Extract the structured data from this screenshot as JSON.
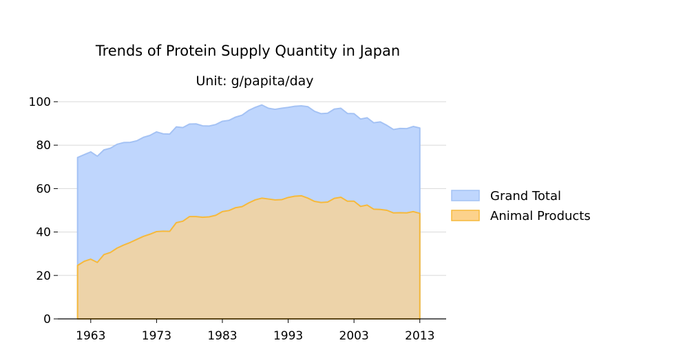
{
  "chart_data": {
    "type": "area",
    "title": "Trends of Protein Supply Quantity in Japan",
    "subtitle": "Unit: g/papita/day",
    "xlabel": "",
    "ylabel": "",
    "xlim": [
      1958,
      2017
    ],
    "ylim": [
      0,
      100
    ],
    "x_ticks": [
      1963,
      1973,
      1983,
      1993,
      2003,
      2013
    ],
    "y_ticks": [
      0,
      20,
      40,
      60,
      80,
      100
    ],
    "grid": "horizontal",
    "legend_position": "right",
    "x": [
      1961,
      1962,
      1963,
      1964,
      1965,
      1966,
      1967,
      1968,
      1969,
      1970,
      1971,
      1972,
      1973,
      1974,
      1975,
      1976,
      1977,
      1978,
      1979,
      1980,
      1981,
      1982,
      1983,
      1984,
      1985,
      1986,
      1987,
      1988,
      1989,
      1990,
      1991,
      1992,
      1993,
      1994,
      1995,
      1996,
      1997,
      1998,
      1999,
      2000,
      2001,
      2002,
      2003,
      2004,
      2005,
      2006,
      2007,
      2008,
      2009,
      2010,
      2011,
      2012,
      2013
    ],
    "series": [
      {
        "name": "Grand Total",
        "color": "#a4c2f4",
        "fill": "#bfd6fd",
        "values": [
          74.3,
          75.6,
          76.9,
          74.9,
          77.8,
          78.6,
          80.4,
          81.2,
          81.3,
          82.0,
          83.6,
          84.5,
          86.1,
          85.2,
          85.1,
          88.4,
          88.1,
          89.7,
          89.8,
          88.9,
          88.8,
          89.5,
          91.0,
          91.4,
          92.9,
          93.8,
          96.0,
          97.4,
          98.5,
          97.0,
          96.5,
          97.0,
          97.4,
          97.9,
          98.1,
          97.7,
          95.6,
          94.5,
          94.7,
          96.6,
          97.0,
          94.6,
          94.5,
          92.0,
          92.6,
          90.3,
          90.7,
          89.1,
          87.2,
          87.7,
          87.6,
          88.6,
          87.9
        ]
      },
      {
        "name": "Animal Products",
        "color": "#f6b93b",
        "fill": "#fcd28c",
        "values": [
          24.6,
          26.5,
          27.5,
          26.0,
          29.6,
          30.6,
          32.6,
          34.0,
          35.2,
          36.6,
          38.0,
          39.0,
          40.2,
          40.4,
          40.3,
          44.3,
          45.0,
          47.1,
          47.1,
          46.8,
          47.0,
          47.7,
          49.4,
          49.9,
          51.2,
          51.7,
          53.4,
          54.8,
          55.6,
          55.2,
          54.8,
          54.9,
          55.9,
          56.5,
          56.7,
          55.6,
          54.1,
          53.6,
          53.8,
          55.5,
          56.0,
          54.2,
          54.2,
          51.8,
          52.4,
          50.5,
          50.4,
          50.0,
          48.8,
          48.9,
          48.8,
          49.4,
          48.6
        ]
      }
    ]
  }
}
